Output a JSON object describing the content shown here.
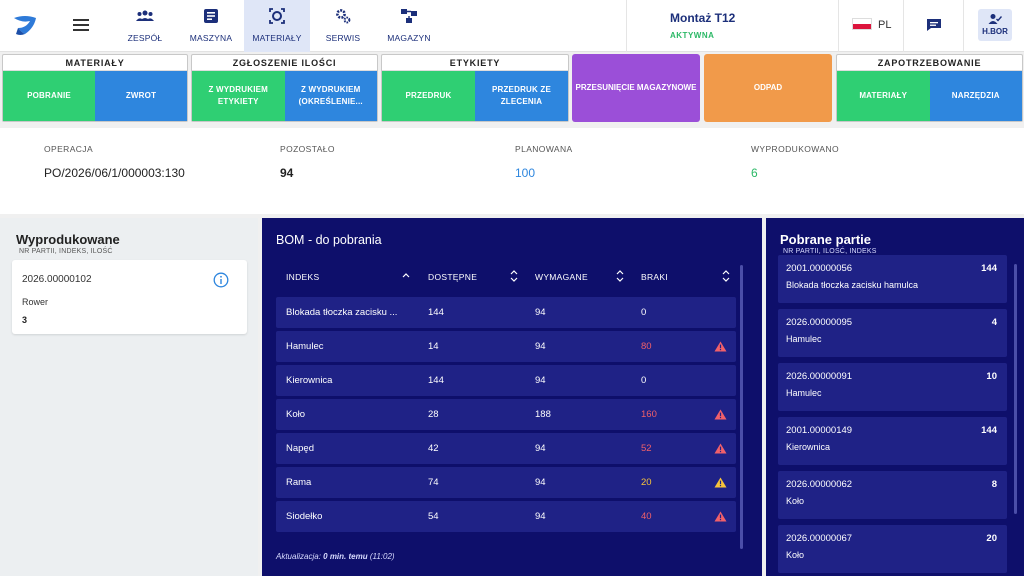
{
  "nav": {
    "tabs": [
      {
        "label": "ZESPÓŁ",
        "icon": "team-icon"
      },
      {
        "label": "MASZYNA",
        "icon": "machine-icon"
      },
      {
        "label": "MATERIAŁY",
        "icon": "materials-icon",
        "active": true
      },
      {
        "label": "SERWIS",
        "icon": "gears-icon"
      },
      {
        "label": "MAGAZYN",
        "icon": "warehouse-icon"
      }
    ]
  },
  "machine": {
    "title": "Montaż T12",
    "status": "AKTYWNA"
  },
  "lang": {
    "code": "PL"
  },
  "user": {
    "name": "H.BOR"
  },
  "actions": {
    "materialy": {
      "title": "MATERIAŁY",
      "pobranie": "POBRANIE",
      "zwrot": "ZWROT"
    },
    "zgloszenie": {
      "title": "ZGŁOSZENIE ILOŚCI",
      "z_wydrukiem": "Z WYDRUKIEM ETYKIETY",
      "z_wydrukiem_okr": "Z WYDRUKIEM (OKREŚLENIE..."
    },
    "etykiety": {
      "title": "ETYKIETY",
      "przedruk": "PRZEDRUK",
      "przedruk_zlecenia": "PRZEDRUK ZE ZLECENIA"
    },
    "przesuniecie": "PRZESUNIĘCIE MAGAZYNOWE",
    "odpad": "ODPAD",
    "zapotrzebowanie": {
      "title": "ZAPOTRZEBOWANIE",
      "materialy": "MATERIAŁY",
      "narzedzia": "NARZĘDZIA"
    }
  },
  "colors": {
    "green": "#2fcf73",
    "blue": "#2e86de",
    "purple": "#9b4fd8",
    "orange": "#f19a4a",
    "navy": "#0e0f6b"
  },
  "info": {
    "operacja": {
      "label": "OPERACJA",
      "value": "PO/2026/06/1/000003:130"
    },
    "pozostalo": {
      "label": "POZOSTAŁO",
      "value": "94"
    },
    "planowana": {
      "label": "PLANOWANA",
      "value": "100"
    },
    "wyprodukowano": {
      "label": "WYPRODUKOWANO",
      "value": "6"
    }
  },
  "wyprodukowane": {
    "title": "Wyprodukowane",
    "subtitle": "NR PARTII, INDEKS, ILOŚĆ",
    "items": [
      {
        "partia": "2026.00000102",
        "indeks": "Rower",
        "ilosc": "3"
      }
    ]
  },
  "bom": {
    "title": "BOM - do pobrania",
    "headers": {
      "indeks": "INDEKS",
      "dostepne": "DOSTĘPNE",
      "wymagane": "WYMAGANE",
      "braki": "BRAKI"
    },
    "rows": [
      {
        "indeks": "Blokada tłoczka zacisku ...",
        "dostepne": "144",
        "wymagane": "94",
        "braki": "0",
        "status": "ok"
      },
      {
        "indeks": "Hamulec",
        "dostepne": "14",
        "wymagane": "94",
        "braki": "80",
        "status": "error"
      },
      {
        "indeks": "Kierownica",
        "dostepne": "144",
        "wymagane": "94",
        "braki": "0",
        "status": "ok"
      },
      {
        "indeks": "Koło",
        "dostepne": "28",
        "wymagane": "188",
        "braki": "160",
        "status": "error"
      },
      {
        "indeks": "Napęd",
        "dostepne": "42",
        "wymagane": "94",
        "braki": "52",
        "status": "error"
      },
      {
        "indeks": "Rama",
        "dostepne": "74",
        "wymagane": "94",
        "braki": "20",
        "status": "warning"
      },
      {
        "indeks": "Siodełko",
        "dostepne": "54",
        "wymagane": "94",
        "braki": "40",
        "status": "error"
      }
    ],
    "footer_prefix": "Aktualizacja: ",
    "footer_bold": "0 min. temu",
    "footer_suffix": " (11:02)"
  },
  "partie": {
    "title": "Pobrane partie",
    "subtitle": "NR PARTII, ILOŚĆ, INDEKS",
    "items": [
      {
        "partia": "2001.00000056",
        "ilosc": "144",
        "indeks": "Blokada tłoczka zacisku hamulca"
      },
      {
        "partia": "2026.00000095",
        "ilosc": "4",
        "indeks": "Hamulec"
      },
      {
        "partia": "2026.00000091",
        "ilosc": "10",
        "indeks": "Hamulec"
      },
      {
        "partia": "2001.00000149",
        "ilosc": "144",
        "indeks": "Kierownica"
      },
      {
        "partia": "2026.00000062",
        "ilosc": "8",
        "indeks": "Koło"
      },
      {
        "partia": "2026.00000067",
        "ilosc": "20",
        "indeks": "Koło"
      }
    ]
  }
}
